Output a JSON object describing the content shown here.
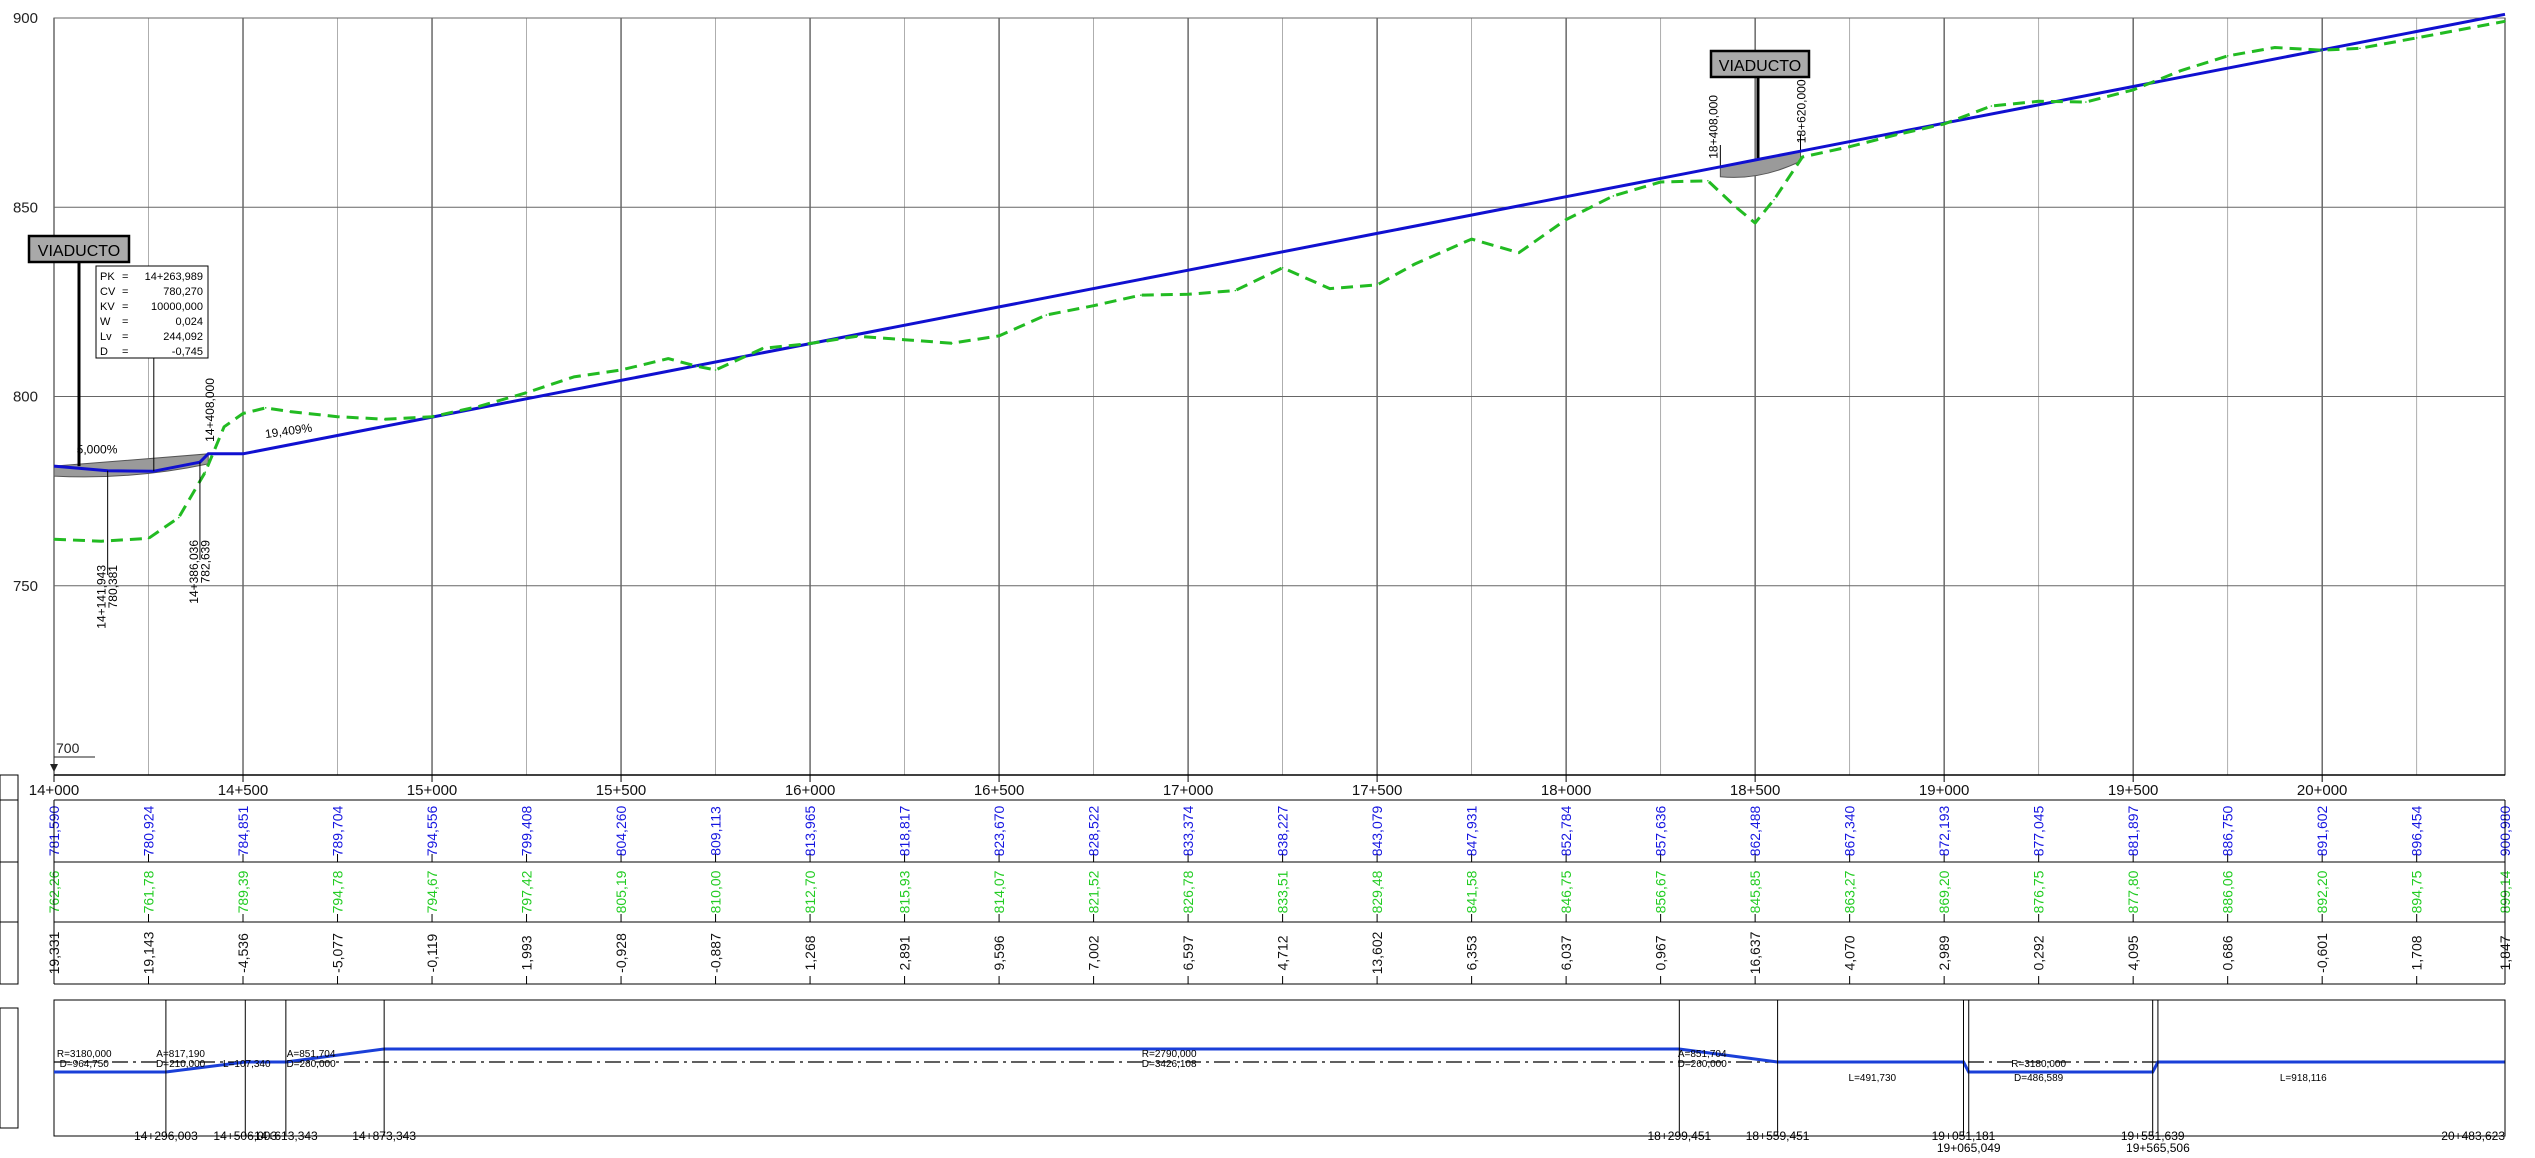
{
  "y_axis_labels": [
    "900",
    "850",
    "800",
    "750"
  ],
  "datum_label": "700",
  "stations": [
    "14+000",
    "14+500",
    "15+000",
    "15+500",
    "16+000",
    "16+500",
    "17+000",
    "17+500",
    "18+000",
    "18+500",
    "19+000",
    "19+500",
    "20+000"
  ],
  "chart_data": {
    "type": "line",
    "xlabel": "",
    "ylabel": "",
    "xlim_m": [
      14000,
      20483.623
    ],
    "ylim": [
      700,
      900
    ],
    "grid": true,
    "series": [
      {
        "key": "rasante",
        "color": "#1010d0",
        "style": "solid",
        "points": [
          [
            14000,
            781.6
          ],
          [
            14141.943,
            780.381
          ],
          [
            14263.989,
            780.27
          ],
          [
            14386.036,
            782.639
          ],
          [
            14408,
            784.85
          ],
          [
            14500,
            784.851
          ],
          [
            15000,
            794.556
          ],
          [
            15500,
            804.26
          ],
          [
            16000,
            813.965
          ],
          [
            16500,
            823.67
          ],
          [
            17000,
            833.374
          ],
          [
            17500,
            843.079
          ],
          [
            18000,
            852.784
          ],
          [
            18408,
            860.7
          ],
          [
            18500,
            862.488
          ],
          [
            18620,
            864.8
          ],
          [
            19000,
            872.193
          ],
          [
            19500,
            881.897
          ],
          [
            20000,
            891.602
          ],
          [
            20483.623,
            900.98
          ]
        ]
      },
      {
        "key": "terreno",
        "color": "#22bb22",
        "style": "dashed",
        "points": [
          [
            14000,
            762.26
          ],
          [
            14125,
            761.78
          ],
          [
            14250,
            762.5
          ],
          [
            14330,
            768
          ],
          [
            14400,
            780
          ],
          [
            14450,
            792
          ],
          [
            14500,
            795.5
          ],
          [
            14560,
            797
          ],
          [
            14625,
            796
          ],
          [
            14750,
            794.67
          ],
          [
            14875,
            794
          ],
          [
            15000,
            794.67
          ],
          [
            15125,
            797.42
          ],
          [
            15250,
            801
          ],
          [
            15375,
            805.19
          ],
          [
            15500,
            807
          ],
          [
            15625,
            810
          ],
          [
            15700,
            808
          ],
          [
            15750,
            807
          ],
          [
            15875,
            812.7
          ],
          [
            16000,
            814
          ],
          [
            16125,
            815.93
          ],
          [
            16250,
            815
          ],
          [
            16375,
            814.07
          ],
          [
            16500,
            816
          ],
          [
            16625,
            821.52
          ],
          [
            16750,
            824
          ],
          [
            16875,
            826.78
          ],
          [
            17000,
            827
          ],
          [
            17125,
            828
          ],
          [
            17250,
            834
          ],
          [
            17375,
            828.51
          ],
          [
            17500,
            829.48
          ],
          [
            17600,
            835
          ],
          [
            17750,
            841.58
          ],
          [
            17875,
            838
          ],
          [
            18000,
            846.75
          ],
          [
            18125,
            853
          ],
          [
            18250,
            856.67
          ],
          [
            18375,
            857
          ],
          [
            18450,
            850
          ],
          [
            18500,
            845.85
          ],
          [
            18550,
            852
          ],
          [
            18625,
            863.27
          ],
          [
            18750,
            866
          ],
          [
            18875,
            869.2
          ],
          [
            19000,
            872
          ],
          [
            19125,
            876.75
          ],
          [
            19250,
            878
          ],
          [
            19375,
            877.8
          ],
          [
            19500,
            881
          ],
          [
            19625,
            886.06
          ],
          [
            19750,
            890
          ],
          [
            19875,
            892.2
          ],
          [
            20000,
            891.5
          ],
          [
            20100,
            892
          ],
          [
            20250,
            894.75
          ],
          [
            20483.623,
            899.14
          ]
        ]
      }
    ]
  },
  "viaducts": [
    {
      "label": "VIADUCTO",
      "pk_start_label": "",
      "pk_end_label": "14+408,000",
      "start_m": 14000,
      "end_m": 14408
    },
    {
      "label": "VIADUCTO",
      "pk_start_label": "18+408,000",
      "pk_end_label": "18+620,000",
      "start_m": 18408,
      "end_m": 18620
    }
  ],
  "grade_labels": [
    {
      "text": "5,000%",
      "m": 14060,
      "z": 785
    },
    {
      "text": "19,409%",
      "m": 14560,
      "z": 789
    }
  ],
  "vertical_curve_annotations": [
    {
      "text": "14+141,943",
      "m": 14141.943,
      "z": 780.381
    },
    {
      "text": "780,381",
      "m": 14151,
      "z": 780.381
    },
    {
      "text": "14+386,036",
      "m": 14386.036,
      "z": 782.639
    },
    {
      "text": "782,639",
      "m": 14396,
      "z": 782.639
    }
  ],
  "curve_info_box": {
    "rows": [
      {
        "key": "PK",
        "sep": "=",
        "value": "14+263,989"
      },
      {
        "key": "CV",
        "sep": "=",
        "value": "780,270"
      },
      {
        "key": "KV",
        "sep": "=",
        "value": "10000,000"
      },
      {
        "key": "W",
        "sep": "=",
        "value": "0,024"
      },
      {
        "key": "Lv",
        "sep": "=",
        "value": "244,092"
      },
      {
        "key": "D",
        "sep": "=",
        "value": "-0,745"
      }
    ]
  },
  "bands": {
    "cota_rasante": [
      "781,590",
      "780,924",
      "784,851",
      "789,704",
      "794,556",
      "799,408",
      "804,260",
      "809,113",
      "813,965",
      "818,817",
      "823,670",
      "828,522",
      "833,374",
      "838,227",
      "843,079",
      "847,931",
      "852,784",
      "857,636",
      "862,488",
      "867,340",
      "872,193",
      "877,045",
      "881,897",
      "886,750",
      "891,602",
      "896,454",
      "900,980"
    ],
    "cota_terreno": [
      "762,26",
      "761,78",
      "789,39",
      "794,78",
      "794,67",
      "797,42",
      "805,19",
      "810,00",
      "812,70",
      "815,93",
      "814,07",
      "821,52",
      "826,78",
      "833,51",
      "829,48",
      "841,58",
      "846,75",
      "856,67",
      "845,85",
      "863,27",
      "869,20",
      "876,75",
      "877,80",
      "886,06",
      "892,20",
      "894,75",
      "899,14"
    ],
    "diferencia": [
      "19,331",
      "19,143",
      "-4,536",
      "-5,077",
      "-0,119",
      "1,993",
      "-0,928",
      "-0,887",
      "1,268",
      "2,891",
      "9,596",
      "7,002",
      "6,597",
      "4,712",
      "13,602",
      "6,353",
      "6,037",
      "0,967",
      "16,637",
      "4,070",
      "2,989",
      "0,292",
      "4,095",
      "0,686",
      "-0,601",
      "1,708",
      "1,847"
    ],
    "colors": {
      "rasante": "#1515e0",
      "terreno": "#22cc22",
      "diferencia": "#111111"
    }
  },
  "alignment_labels": [
    {
      "text": "R=3180,000",
      "m": 14080,
      "row": 0
    },
    {
      "text": "D=964,750",
      "m": 14080,
      "row": 1
    },
    {
      "text": "A=817,190",
      "m": 14335,
      "row": 0
    },
    {
      "text": "D=210,000",
      "m": 14335,
      "row": 1
    },
    {
      "text": "L=107,340",
      "m": 14510,
      "row": 1
    },
    {
      "text": "A=851,704",
      "m": 14680,
      "row": 0
    },
    {
      "text": "D=260,000",
      "m": 14680,
      "row": 1
    },
    {
      "text": "R=2790,000",
      "m": 16950,
      "row": 0
    },
    {
      "text": "D=3426,108",
      "m": 16950,
      "row": 1
    },
    {
      "text": "A=851,704",
      "m": 18360,
      "row": 0
    },
    {
      "text": "D=260,000",
      "m": 18360,
      "row": 1
    },
    {
      "text": "L=491,730",
      "m": 18810,
      "row": 2
    },
    {
      "text": "R=3180,000",
      "m": 19250,
      "row": 1
    },
    {
      "text": "D=486,589",
      "m": 19250,
      "row": 2
    },
    {
      "text": "L=918,116",
      "m": 19950,
      "row": 2
    }
  ],
  "alignment_pks": [
    {
      "text": "14+296,003",
      "m": 14296.003,
      "row": 0
    },
    {
      "text": "14+506,003",
      "m": 14506.003,
      "row": 0
    },
    {
      "text": "14+613,343",
      "m": 14613.343,
      "row": 0
    },
    {
      "text": "14+873,343",
      "m": 14873.343,
      "row": 0
    },
    {
      "text": "18+299,451",
      "m": 18299.451,
      "row": 0
    },
    {
      "text": "18+559,451",
      "m": 18559.451,
      "row": 0
    },
    {
      "text": "19+051,181",
      "m": 19051.181,
      "row": 0
    },
    {
      "text": "19+065,049",
      "m": 19065.049,
      "row": 1
    },
    {
      "text": "19+551,639",
      "m": 19551.639,
      "row": 0
    },
    {
      "text": "19+565,506",
      "m": 19565.506,
      "row": 1
    },
    {
      "text": "20+483,623",
      "m": 20483.623,
      "row": 0
    }
  ]
}
